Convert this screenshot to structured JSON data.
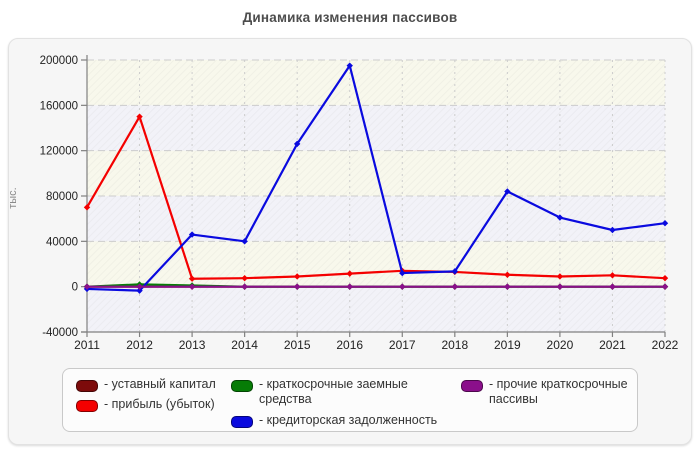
{
  "page": {
    "title": "Динамика изменения пассивов"
  },
  "chart_data": {
    "type": "line",
    "title": "Динамика изменения пассивов",
    "xlabel": "",
    "ylabel": "тыс.",
    "x_labels": [
      "2011",
      "2012",
      "2013",
      "2014",
      "2015",
      "2016",
      "2017",
      "2018",
      "2019",
      "2020",
      "2021",
      "2022"
    ],
    "ylim": [
      -40000,
      200000
    ],
    "ytick_interval": 40000,
    "ytick_labels": [
      "-40000",
      "0",
      "40000",
      "80000",
      "120000",
      "160000",
      "200000"
    ],
    "grid": true,
    "legend_position": "bottom",
    "legend_prefix": "- ",
    "marker": "diamond",
    "series": [
      {
        "name": "уставный капитал",
        "color": "#7d0b0b",
        "values": [
          0,
          0,
          0,
          0,
          0,
          0,
          0,
          0,
          0,
          0,
          0,
          0
        ]
      },
      {
        "name": "прибыль (убыток)",
        "color": "#f40000",
        "values": [
          70000,
          150000,
          7000,
          7500,
          9000,
          11500,
          14000,
          13000,
          10500,
          9000,
          10000,
          7500
        ]
      },
      {
        "name": "краткосрочные заемные средства",
        "color": "#067c06",
        "values": [
          0,
          2000,
          1000,
          0,
          0,
          0,
          0,
          0,
          0,
          0,
          0,
          0
        ]
      },
      {
        "name": "кредиторская задолженность",
        "color": "#0a0adf",
        "values": [
          -2000,
          -3500,
          46000,
          40000,
          126000,
          195000,
          12000,
          13500,
          84000,
          61000,
          50000,
          56000
        ]
      },
      {
        "name": "прочие краткосрочные пассивы",
        "color": "#8b0f8b",
        "values": [
          0,
          0,
          0,
          0,
          0,
          0,
          0,
          0,
          0,
          0,
          0,
          0
        ]
      }
    ],
    "legend_columns": [
      [
        0,
        1
      ],
      [
        2,
        3
      ],
      [
        4
      ]
    ]
  },
  "colors": {
    "band_a": "#f8f8ec",
    "band_b": "#f2f2f8",
    "hatch": "rgba(90,90,90,0.05)",
    "grid": "#cccccc",
    "zero_line": "#666666",
    "axis": "#808080",
    "tick_text": "#222222",
    "title_text": "#4d4d4d",
    "ylabel_text": "#8a8a8a",
    "card_bg": "#f6f6f6",
    "card_border": "#e2e2e2",
    "legend_bg": "#fcfcfc",
    "legend_border": "#c9c9c9",
    "legend_text": "#333333"
  }
}
